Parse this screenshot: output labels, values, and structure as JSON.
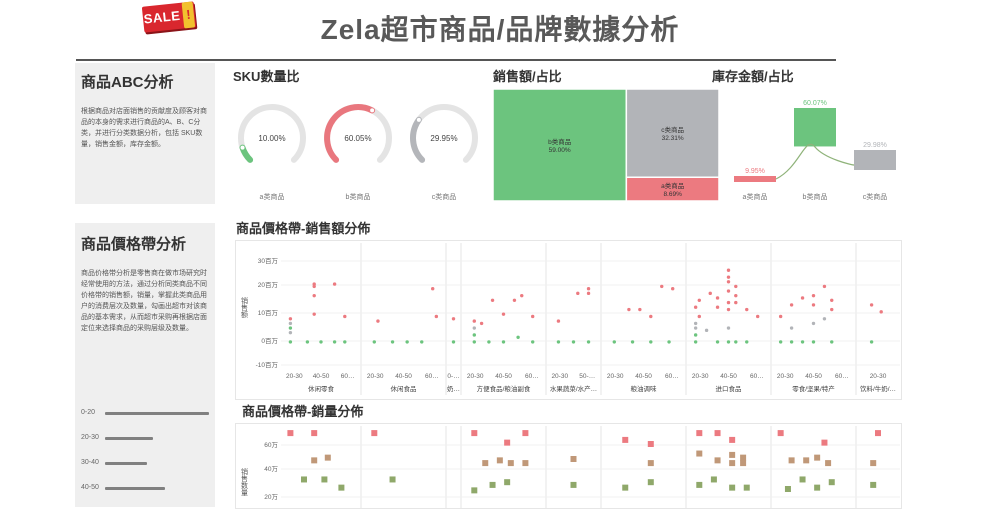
{
  "header": {
    "badge": "SALE",
    "badge_mark": "!",
    "title": "Zela超市商品/品牌數據分析"
  },
  "abc_panel": {
    "title": "商品ABC分析",
    "description": "根据商品对店面销售的贡献度及顾客对商品的本身的需求进行商品的A、B、C分类，并进行分类数据分析，包括 SKU数量，销售金额，库存金额。"
  },
  "price_panel": {
    "title": "商品價格帶分析",
    "description": "商品价格带分析是零售商在做市场研究时经常使用的方法，通过分析同类商品不同价格带的销售额，销量，掌握此类商品用户的消费层次及数量，勾画出超市对该商品的基本需求，从而超市采购再根据店面定位来选择商品的采购层级及数量。",
    "ranges": [
      {
        "label": "0-20",
        "value": 1.0
      },
      {
        "label": "20-30",
        "value": 0.46
      },
      {
        "label": "30-40",
        "value": 0.4
      },
      {
        "label": "40-50",
        "value": 0.58
      }
    ]
  },
  "sku_section": {
    "title": "SKU數量比",
    "gauges": [
      {
        "label": "a类商品",
        "value": 10.0,
        "text": "10.00%",
        "color": "#6cc47e"
      },
      {
        "label": "b类商品",
        "value": 60.05,
        "text": "60.05%",
        "color": "#e9777e"
      },
      {
        "label": "c类商品",
        "value": 29.95,
        "text": "29.95%",
        "color": "#b4b6ba"
      }
    ]
  },
  "sales_section": {
    "title": "銷售額/占比",
    "cells": [
      {
        "name": "b类商品",
        "value": "59.00%",
        "color": "#6cc47e"
      },
      {
        "name": "c类商品",
        "value": "32.31%",
        "color": "#b2b4b8"
      },
      {
        "name": "a类商品",
        "value": "8.69%",
        "color": "#ec7a80"
      }
    ]
  },
  "inventory_section": {
    "title": "庫存金額/占比",
    "bars": [
      {
        "label": "a类商品",
        "value": 9.95,
        "text": "9.95%",
        "color": "#ec7a80"
      },
      {
        "label": "b类商品",
        "value": 60.07,
        "text": "60.07%",
        "color": "#6cc47e"
      },
      {
        "label": "c类商品",
        "value": 29.98,
        "text": "29.98%",
        "color": "#b2b4b8"
      }
    ]
  },
  "scatter_sales": {
    "title": "商品價格帶-銷售額分佈",
    "ylabel": "销售额",
    "yticks": [
      "30百万",
      "20百万",
      "10百万",
      "0百万",
      "-10百万"
    ],
    "chart_data": {
      "type": "scatter",
      "title": "商品價格帶-銷售額分佈",
      "ylabel": "销售额",
      "ylim": [
        -10,
        35
      ],
      "y_unit": "百万",
      "categories": [
        "休闲零食",
        "休闲食品",
        "奶…",
        "方便食品/粮油副食",
        "水果蔬菜/水产…",
        "粮油调味",
        "进口食品",
        "零食/坚果/特产",
        "饮料/牛奶/…"
      ],
      "subcategory_ticks": [
        [
          "20-30",
          "40-50",
          "60…"
        ],
        [
          "20-30",
          "40-50",
          "60…"
        ],
        [
          "0-…"
        ],
        [
          "20-30",
          "40-50",
          "60…"
        ],
        [
          "20-30",
          "50-…"
        ],
        [
          "20-30",
          "40-50",
          "60…"
        ],
        [
          "20-30",
          "40-50",
          "60…"
        ],
        [
          "20-30",
          "40-50",
          "60…"
        ],
        [
          "20-30"
        ]
      ],
      "series": [
        {
          "color": "#ec7a80",
          "points": [
            [
              0,
              0.05,
              10
            ],
            [
              0,
              0.4,
              24
            ],
            [
              0,
              0.4,
              25
            ],
            [
              0,
              0.4,
              20
            ],
            [
              0,
              0.4,
              12
            ],
            [
              0,
              0.7,
              25
            ],
            [
              0,
              0.85,
              11
            ],
            [
              1,
              0.9,
              23
            ],
            [
              1,
              0.15,
              9
            ],
            [
              1,
              0.95,
              11
            ],
            [
              2,
              0.5,
              10
            ],
            [
              3,
              0.1,
              9
            ],
            [
              3,
              0.2,
              8
            ],
            [
              3,
              0.35,
              18
            ],
            [
              3,
              0.5,
              12
            ],
            [
              3,
              0.65,
              18
            ],
            [
              3,
              0.75,
              20
            ],
            [
              3,
              0.9,
              11
            ],
            [
              4,
              0.15,
              9
            ],
            [
              4,
              0.6,
              21
            ],
            [
              4,
              0.85,
              21
            ],
            [
              4,
              0.85,
              23
            ],
            [
              5,
              0.3,
              14
            ],
            [
              5,
              0.45,
              14
            ],
            [
              5,
              0.75,
              24
            ],
            [
              5,
              0.9,
              23
            ],
            [
              5,
              0.6,
              11
            ],
            [
              6,
              0.05,
              15
            ],
            [
              6,
              0.1,
              18
            ],
            [
              6,
              0.1,
              11
            ],
            [
              6,
              0.25,
              21
            ],
            [
              6,
              0.35,
              19
            ],
            [
              6,
              0.35,
              15
            ],
            [
              6,
              0.5,
              31
            ],
            [
              6,
              0.5,
              28
            ],
            [
              6,
              0.5,
              26
            ],
            [
              6,
              0.5,
              22
            ],
            [
              6,
              0.5,
              17
            ],
            [
              6,
              0.5,
              14
            ],
            [
              6,
              0.6,
              24
            ],
            [
              6,
              0.6,
              20
            ],
            [
              6,
              0.6,
              17
            ],
            [
              6,
              0.75,
              14
            ],
            [
              6,
              0.9,
              11
            ],
            [
              7,
              0.05,
              11
            ],
            [
              7,
              0.2,
              16
            ],
            [
              7,
              0.35,
              19
            ],
            [
              7,
              0.5,
              20
            ],
            [
              7,
              0.5,
              16
            ],
            [
              7,
              0.65,
              24
            ],
            [
              7,
              0.75,
              14
            ],
            [
              7,
              0.75,
              18
            ],
            [
              8,
              0.3,
              16
            ],
            [
              8,
              0.6,
              13
            ]
          ]
        },
        {
          "color": "#6cc47e",
          "points": [
            [
              0,
              0.05,
              6
            ],
            [
              0,
              0.05,
              0
            ],
            [
              0,
              0.3,
              0
            ],
            [
              0,
              0.5,
              0
            ],
            [
              0,
              0.7,
              0
            ],
            [
              0,
              0.85,
              0
            ],
            [
              1,
              0.1,
              0
            ],
            [
              1,
              0.35,
              0
            ],
            [
              1,
              0.55,
              0
            ],
            [
              1,
              0.75,
              0
            ],
            [
              2,
              0.5,
              0
            ],
            [
              3,
              0.1,
              0
            ],
            [
              3,
              0.1,
              3
            ],
            [
              3,
              0.3,
              0
            ],
            [
              3,
              0.5,
              0
            ],
            [
              3,
              0.7,
              2
            ],
            [
              3,
              0.9,
              0
            ],
            [
              4,
              0.15,
              0
            ],
            [
              4,
              0.5,
              0
            ],
            [
              4,
              0.85,
              0
            ],
            [
              5,
              0.1,
              0
            ],
            [
              5,
              0.35,
              0
            ],
            [
              5,
              0.6,
              0
            ],
            [
              5,
              0.85,
              0
            ],
            [
              6,
              0.05,
              0
            ],
            [
              6,
              0.05,
              3
            ],
            [
              6,
              0.35,
              0
            ],
            [
              6,
              0.5,
              0
            ],
            [
              6,
              0.6,
              0
            ],
            [
              6,
              0.75,
              0
            ],
            [
              7,
              0.05,
              0
            ],
            [
              7,
              0.2,
              0
            ],
            [
              7,
              0.35,
              0
            ],
            [
              7,
              0.5,
              0
            ],
            [
              7,
              0.75,
              0
            ],
            [
              8,
              0.3,
              0
            ]
          ]
        },
        {
          "color": "#b2b4b8",
          "points": [
            [
              0,
              0.05,
              8
            ],
            [
              0,
              0.05,
              4
            ],
            [
              3,
              0.1,
              6
            ],
            [
              6,
              0.05,
              8
            ],
            [
              6,
              0.05,
              6
            ],
            [
              6,
              0.2,
              5
            ],
            [
              6,
              0.5,
              6
            ],
            [
              7,
              0.2,
              6
            ],
            [
              7,
              0.5,
              8
            ],
            [
              7,
              0.65,
              10
            ]
          ]
        }
      ]
    }
  },
  "scatter_volume": {
    "title": "商品價格帶-銷量分佈",
    "ylabel": "销售数量",
    "yticks": [
      "60万",
      "40万",
      "20万"
    ],
    "chart_data": {
      "type": "scatter",
      "title": "商品價格帶-銷量分佈",
      "ylabel": "销售数量",
      "ylim": [
        15,
        70
      ],
      "y_unit": "万",
      "series": [
        {
          "color": "#ec7a80",
          "points": [
            [
              0,
              0.05,
              67
            ],
            [
              0,
              0.4,
              67
            ],
            [
              1,
              0.1,
              67
            ],
            [
              3,
              0.1,
              67
            ],
            [
              3,
              0.55,
              60
            ],
            [
              3,
              0.8,
              67
            ],
            [
              5,
              0.25,
              62
            ],
            [
              5,
              0.6,
              59
            ],
            [
              6,
              0.1,
              67
            ],
            [
              6,
              0.35,
              67
            ],
            [
              6,
              0.55,
              62
            ],
            [
              7,
              0.05,
              67
            ],
            [
              7,
              0.65,
              60
            ],
            [
              8,
              0.5,
              67
            ]
          ]
        },
        {
          "color": "#c09878",
          "points": [
            [
              0,
              0.4,
              47
            ],
            [
              0,
              0.6,
              49
            ],
            [
              3,
              0.25,
              45
            ],
            [
              3,
              0.45,
              47
            ],
            [
              3,
              0.6,
              45
            ],
            [
              3,
              0.8,
              45
            ],
            [
              4,
              0.5,
              48
            ],
            [
              5,
              0.6,
              45
            ],
            [
              6,
              0.1,
              52
            ],
            [
              6,
              0.35,
              47
            ],
            [
              6,
              0.55,
              45
            ],
            [
              6,
              0.55,
              51
            ],
            [
              6,
              0.7,
              45
            ],
            [
              6,
              0.7,
              49
            ],
            [
              7,
              0.2,
              47
            ],
            [
              7,
              0.4,
              47
            ],
            [
              7,
              0.55,
              49
            ],
            [
              7,
              0.7,
              45
            ],
            [
              8,
              0.35,
              45
            ]
          ]
        },
        {
          "color": "#8fa86a",
          "points": [
            [
              0,
              0.25,
              33
            ],
            [
              0,
              0.55,
              33
            ],
            [
              0,
              0.8,
              27
            ],
            [
              1,
              0.35,
              33
            ],
            [
              3,
              0.1,
              25
            ],
            [
              3,
              0.35,
              29
            ],
            [
              3,
              0.55,
              31
            ],
            [
              4,
              0.5,
              29
            ],
            [
              5,
              0.25,
              27
            ],
            [
              5,
              0.6,
              31
            ],
            [
              6,
              0.1,
              29
            ],
            [
              6,
              0.3,
              33
            ],
            [
              6,
              0.55,
              27
            ],
            [
              6,
              0.75,
              27
            ],
            [
              7,
              0.15,
              26
            ],
            [
              7,
              0.35,
              33
            ],
            [
              7,
              0.55,
              27
            ],
            [
              7,
              0.75,
              31
            ],
            [
              8,
              0.35,
              29
            ]
          ]
        }
      ]
    }
  }
}
